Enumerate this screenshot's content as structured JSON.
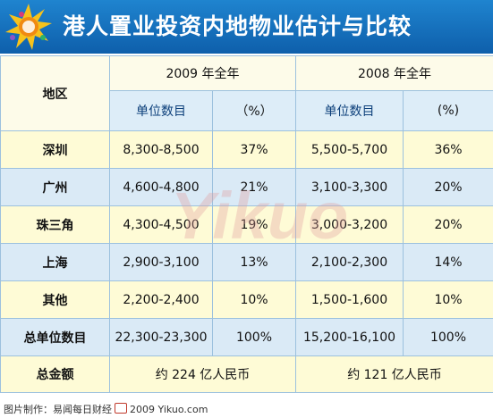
{
  "header": {
    "title": "港人置业投资内地物业估计与比较",
    "accent": "#1570bf",
    "logo_icon": "sun-star-logo"
  },
  "table": {
    "region_header": "地区",
    "year_headers": [
      "2009 年全年",
      "2008 年全年"
    ],
    "sub_headers": [
      "单位数目",
      "（%）",
      "单位数目",
      "(%)"
    ],
    "rows": [
      {
        "label": "深圳",
        "u2009": "8,300-8,500",
        "p2009": "37%",
        "u2008": "5,500-5,700",
        "p2008": "36%"
      },
      {
        "label": "广州",
        "u2009": "4,600-4,800",
        "p2009": "21%",
        "u2008": "3,100-3,300",
        "p2008": "20%"
      },
      {
        "label": "珠三角",
        "u2009": "4,300-4,500",
        "p2009": "19%",
        "u2008": "3,000-3,200",
        "p2008": "20%"
      },
      {
        "label": "上海",
        "u2009": "2,900-3,100",
        "p2009": "13%",
        "u2008": "2,100-2,300",
        "p2008": "14%"
      },
      {
        "label": "其他",
        "u2009": "2,200-2,400",
        "p2009": "10%",
        "u2008": "1,500-1,600",
        "p2008": "10%"
      }
    ],
    "total": {
      "label": "总单位数目",
      "u2009": "22,300-23,300",
      "p2009": "100%",
      "u2008": "15,200-16,100",
      "p2008": "100%"
    },
    "amount": {
      "label": "总金额",
      "v2009": "约 224 亿人民币",
      "v2008": "约 121 亿人民币"
    },
    "row_colors": {
      "yellow": "#fefbd6",
      "blue": "#daeaf6"
    }
  },
  "watermark": {
    "text": "Yikuo"
  },
  "footer": {
    "text1": "图片制作：易闻每日财经",
    "text2": "2009 Yikuo.com"
  }
}
